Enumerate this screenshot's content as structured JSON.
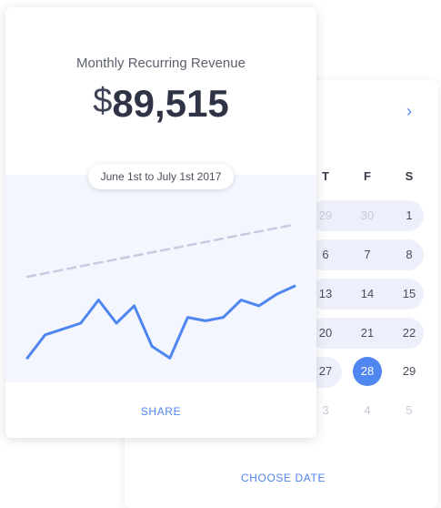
{
  "revenue_card": {
    "title": "Monthly Recurring Revenue",
    "currency_symbol": "$",
    "amount": "89,515",
    "date_range": "June 1st to July 1st 2017",
    "share_label": "SHARE"
  },
  "calendar": {
    "next_icon": "chevron-right-icon",
    "weekdays": [
      "T",
      "F",
      "S"
    ],
    "weeks": [
      [
        "29",
        "30",
        "1"
      ],
      [
        "6",
        "7",
        "8"
      ],
      [
        "13",
        "14",
        "15"
      ],
      [
        "20",
        "21",
        "22"
      ],
      [
        "27",
        "28",
        "29"
      ],
      [
        "3",
        "4",
        "5"
      ]
    ],
    "selected_day": "28",
    "choose_date_label": "CHOOSE DATE"
  },
  "chart_data": {
    "type": "line",
    "series": [
      {
        "name": "",
        "style": "solid",
        "color": "#4f86f0",
        "values": [
          1,
          3,
          3.5,
          4,
          6,
          4,
          5.5,
          2,
          1,
          4.5,
          4.2,
          4.5,
          6,
          5.5,
          6.5,
          7.2
        ]
      },
      {
        "name": "",
        "style": "dashed",
        "color": "#c5cbe0",
        "values": [
          8,
          8.3,
          8.6,
          8.9,
          9.2,
          9.5,
          9.8,
          10.1,
          10.4,
          10.7,
          11.0,
          11.3,
          11.6,
          11.9,
          12.2,
          12.5
        ]
      }
    ],
    "ylim": [
      0,
      16
    ],
    "grid": false,
    "legend": "none"
  }
}
